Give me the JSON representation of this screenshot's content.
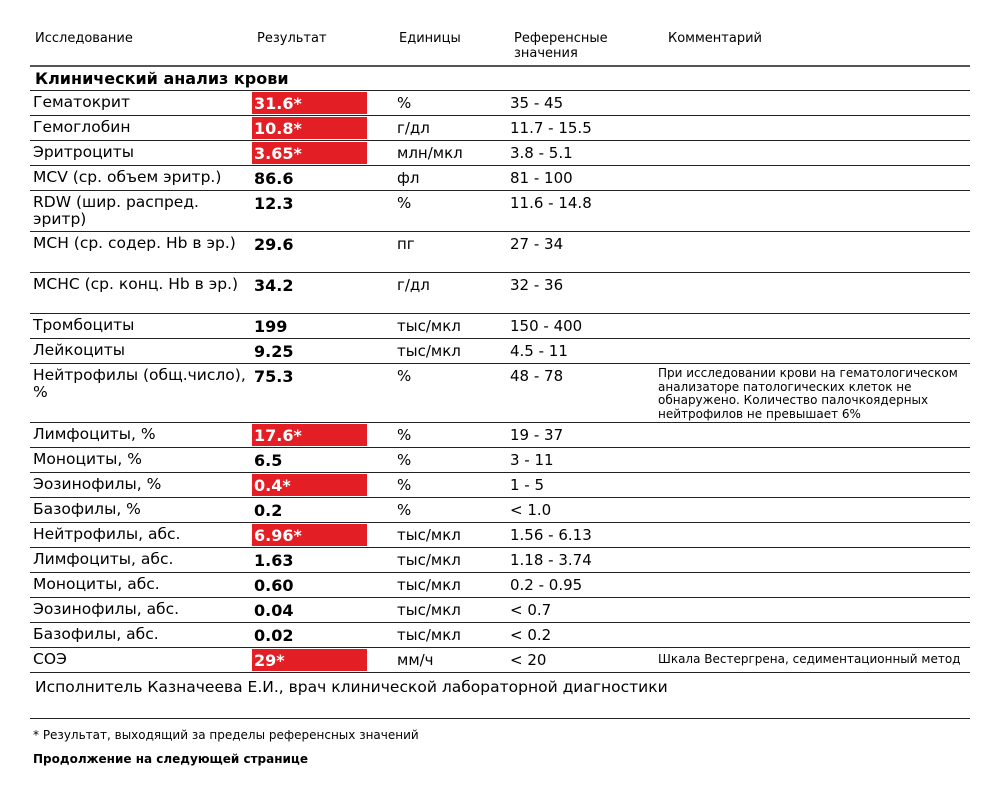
{
  "headers": {
    "test": "Исследование",
    "result": "Результат",
    "units": "Единицы",
    "reference": "Референсные значения",
    "comment": "Комментарий"
  },
  "section": "Клинический анализ крови",
  "flag_color": "#e31e24",
  "rows": [
    {
      "name": "Гематокрит",
      "result": "31.6*",
      "flag": true,
      "units": "%",
      "ref": "35 - 45",
      "comment": ""
    },
    {
      "name": "Гемоглобин",
      "result": "10.8*",
      "flag": true,
      "units": "г/дл",
      "ref": "11.7 - 15.5",
      "comment": ""
    },
    {
      "name": "Эритроциты",
      "result": "3.65*",
      "flag": true,
      "units": "млн/мкл",
      "ref": "3.8 - 5.1",
      "comment": ""
    },
    {
      "name": "MCV (ср. объем эритр.)",
      "result": "86.6",
      "flag": false,
      "units": "фл",
      "ref": "81 - 100",
      "comment": ""
    },
    {
      "name": "RDW (шир. распред. эритр)",
      "result": "12.3",
      "flag": false,
      "units": "%",
      "ref": "11.6 - 14.8",
      "comment": ""
    },
    {
      "name": "MCH (ср. содер. Hb в эр.)",
      "result": "29.6",
      "flag": false,
      "units": "пг",
      "ref": "27 - 34",
      "comment": ""
    },
    {
      "name": "MCHC (ср. конц. Hb в эр.)",
      "result": "34.2",
      "flag": false,
      "units": "г/дл",
      "ref": "32 - 36",
      "comment": ""
    },
    {
      "name": "Тромбоциты",
      "result": "199",
      "flag": false,
      "units": "тыс/мкл",
      "ref": "150 - 400",
      "comment": ""
    },
    {
      "name": "Лейкоциты",
      "result": "9.25",
      "flag": false,
      "units": "тыс/мкл",
      "ref": "4.5 - 11",
      "comment": ""
    },
    {
      "name": "Нейтрофилы (общ.число), %",
      "result": "75.3",
      "flag": false,
      "units": "%",
      "ref": "48 - 78",
      "comment": "При исследовании крови на гематологическом анализаторе патологических клеток не обнаружено. Количество палочкоядерных нейтрофилов не превышает 6%"
    },
    {
      "name": "Лимфоциты, %",
      "result": "17.6*",
      "flag": true,
      "units": "%",
      "ref": "19 - 37",
      "comment": ""
    },
    {
      "name": "Моноциты, %",
      "result": "6.5",
      "flag": false,
      "units": "%",
      "ref": "3 - 11",
      "comment": ""
    },
    {
      "name": "Эозинофилы, %",
      "result": "0.4*",
      "flag": true,
      "units": "%",
      "ref": "1 - 5",
      "comment": ""
    },
    {
      "name": "Базофилы, %",
      "result": "0.2",
      "flag": false,
      "units": "%",
      "ref": "< 1.0",
      "comment": ""
    },
    {
      "name": "Нейтрофилы, абс.",
      "result": "6.96*",
      "flag": true,
      "units": "тыс/мкл",
      "ref": "1.56 - 6.13",
      "comment": ""
    },
    {
      "name": "Лимфоциты, абс.",
      "result": "1.63",
      "flag": false,
      "units": "тыс/мкл",
      "ref": "1.18 - 3.74",
      "comment": ""
    },
    {
      "name": "Моноциты, абс.",
      "result": "0.60",
      "flag": false,
      "units": "тыс/мкл",
      "ref": "0.2 - 0.95",
      "comment": ""
    },
    {
      "name": "Эозинофилы, абс.",
      "result": "0.04",
      "flag": false,
      "units": "тыс/мкл",
      "ref": "< 0.7",
      "comment": ""
    },
    {
      "name": "Базофилы, абс.",
      "result": "0.02",
      "flag": false,
      "units": "тыс/мкл",
      "ref": "< 0.2",
      "comment": ""
    },
    {
      "name": "СОЭ",
      "result": "29*",
      "flag": true,
      "units": "мм/ч",
      "ref": "< 20",
      "comment": "Шкала Вестергрена, седиментационный метод"
    }
  ],
  "executor": "Исполнитель Казначеева  Е.И., врач клинической лабораторной диагностики",
  "footnote": "* Результат, выходящий за пределы референсных значений",
  "continued": "Продолжение на следующей странице"
}
